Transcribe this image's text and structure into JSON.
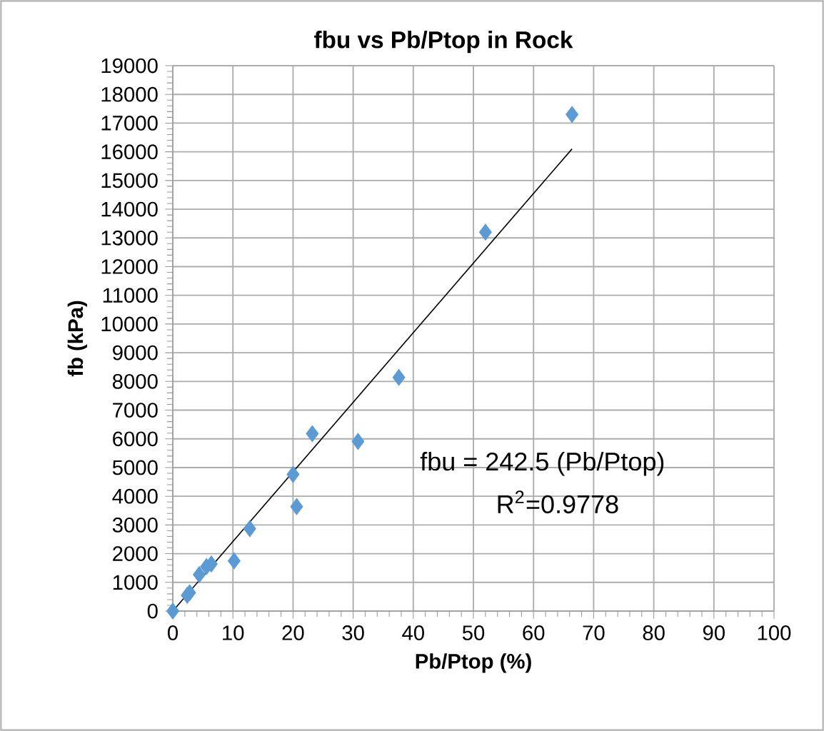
{
  "chart_data": {
    "type": "scatter",
    "title": "fbu vs Pb/Ptop in Rock",
    "xlabel": "Pb/Ptop (%)",
    "ylabel": "fb (kPa)",
    "xlim": [
      0,
      100
    ],
    "ylim": [
      0,
      19000
    ],
    "xticks": [
      0,
      10,
      20,
      30,
      40,
      50,
      60,
      70,
      80,
      90,
      100
    ],
    "yticks": [
      0,
      1000,
      2000,
      3000,
      4000,
      5000,
      6000,
      7000,
      8000,
      9000,
      10000,
      11000,
      12000,
      13000,
      14000,
      15000,
      16000,
      17000,
      18000,
      19000
    ],
    "grid": true,
    "series": [
      {
        "marker": "diamond",
        "color": "#5b9bd5",
        "x": [
          0,
          2.4,
          2.8,
          4.4,
          5.6,
          6.4,
          10.2,
          12.8,
          20,
          20.6,
          23.2,
          30.8,
          37.6,
          52,
          66.4
        ],
        "values": [
          0,
          550,
          640,
          1270,
          1550,
          1640,
          1750,
          2870,
          4760,
          3640,
          6180,
          5910,
          8140,
          13200,
          17300
        ]
      },
      {
        "type": "line",
        "marker": "none",
        "color": "#000000",
        "x": [
          0,
          66.4
        ],
        "values": [
          0,
          16100
        ]
      }
    ],
    "annotations": [
      "fbu = 242.5 (Pb/Ptop)",
      "R$^{2}$=0.9778"
    ]
  }
}
